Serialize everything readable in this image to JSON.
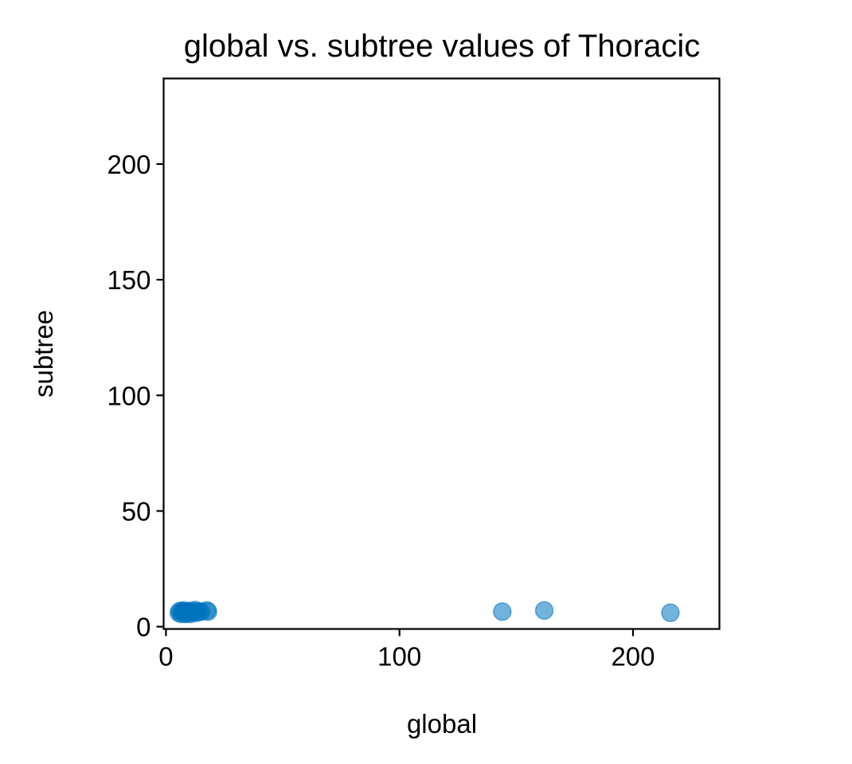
{
  "chart_data": {
    "type": "scatter",
    "title": "global vs. subtree values of Thoracic",
    "xlabel": "global",
    "ylabel": "subtree",
    "xlim": [
      -1,
      237
    ],
    "ylim": [
      -1,
      237
    ],
    "xticks": [
      0,
      100,
      200
    ],
    "yticks": [
      0,
      50,
      100,
      150,
      200
    ],
    "grid": false,
    "legend": "none",
    "marker_color": "#0072bd",
    "marker_alpha": 0.55,
    "points": [
      {
        "x": 5.5,
        "y": 6.0
      },
      {
        "x": 6.0,
        "y": 6.8
      },
      {
        "x": 6.5,
        "y": 5.5
      },
      {
        "x": 7.0,
        "y": 6.5
      },
      {
        "x": 7.5,
        "y": 7.0
      },
      {
        "x": 8.0,
        "y": 6.0
      },
      {
        "x": 8.5,
        "y": 5.5
      },
      {
        "x": 9.0,
        "y": 6.5
      },
      {
        "x": 9.5,
        "y": 6.0
      },
      {
        "x": 10.0,
        "y": 6.8
      },
      {
        "x": 10.5,
        "y": 5.5
      },
      {
        "x": 11.0,
        "y": 6.2
      },
      {
        "x": 12.0,
        "y": 6.5
      },
      {
        "x": 12.5,
        "y": 7.2
      },
      {
        "x": 13.0,
        "y": 6.0
      },
      {
        "x": 14.0,
        "y": 6.5
      },
      {
        "x": 15.0,
        "y": 6.5
      },
      {
        "x": 17.5,
        "y": 7.0
      },
      {
        "x": 18.0,
        "y": 6.5
      },
      {
        "x": 144.0,
        "y": 6.5
      },
      {
        "x": 162.0,
        "y": 7.0
      },
      {
        "x": 216.0,
        "y": 6.0
      }
    ]
  }
}
